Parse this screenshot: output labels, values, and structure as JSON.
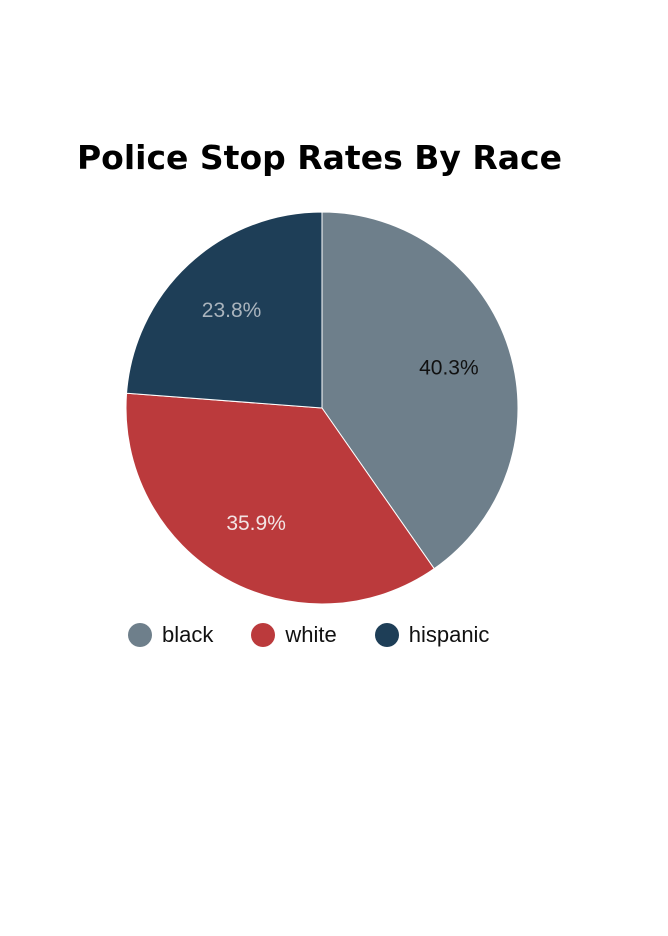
{
  "chart_data": {
    "type": "pie",
    "title": "Police Stop Rates By Race",
    "categories": [
      "black",
      "white",
      "hispanic"
    ],
    "values": [
      40.3,
      35.9,
      23.8
    ],
    "value_labels": [
      "40.3%",
      "35.9%",
      "23.8%"
    ],
    "colors": [
      "#6e7f8b",
      "#bb3a3c",
      "#1e3e57"
    ],
    "label_colors": [
      "#111111",
      "#f2e4e4",
      "#aab4bd"
    ],
    "start_angle": "12 o'clock",
    "direction": "clockwise",
    "legend": {
      "position": "bottom",
      "entries": [
        "black",
        "white",
        "hispanic"
      ]
    }
  }
}
